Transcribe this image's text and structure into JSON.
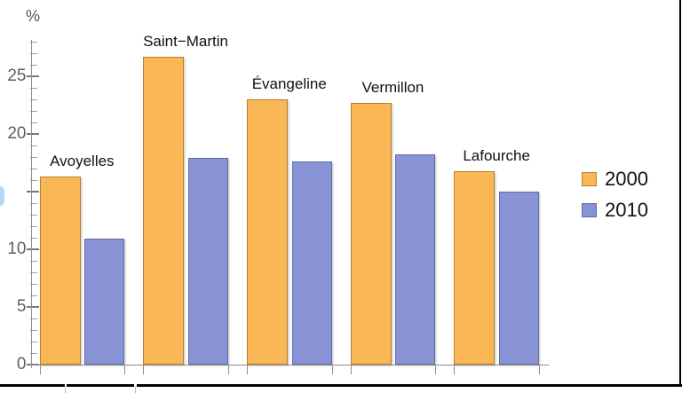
{
  "chart_data": {
    "type": "bar",
    "title": "",
    "ylabel": "%",
    "categories": [
      "Avoyelles",
      "Saint−Martin",
      "Évangeline",
      "Vermillon",
      "Lafourche"
    ],
    "series": [
      {
        "name": "2000",
        "values": [
          16.3,
          26.7,
          23.0,
          22.7,
          16.8
        ],
        "fill": "#FBB655",
        "edge": "#AE8236"
      },
      {
        "name": "2010",
        "values": [
          10.9,
          17.9,
          17.6,
          18.2,
          15.0
        ],
        "fill": "#8893D6",
        "edge": "#5F6A9E"
      }
    ],
    "y_ticks": [
      {
        "value": 25,
        "label": "25"
      },
      {
        "value": 20,
        "label": "20"
      },
      {
        "value": 10,
        "label": "10"
      },
      {
        "value": 5,
        "label": "5"
      },
      {
        "value": 0,
        "label": "0"
      }
    ],
    "y_unlabeled_major_ticks": [
      15
    ],
    "minor_tick_step": 1,
    "ylim": [
      0,
      28.2
    ],
    "grid": false,
    "legend_position": "right-middle"
  },
  "colors": {
    "axis": "#8F8F8F",
    "major_tick": "#787878",
    "minor_tick": "#9D9D9D",
    "tick_label_text": "#5E5E5E",
    "category_label_text": "#111111",
    "legend_text": "#111111",
    "background": "#FFFFFF",
    "frame_border": "#000000",
    "edge_fragment": "#B5D7F3"
  }
}
